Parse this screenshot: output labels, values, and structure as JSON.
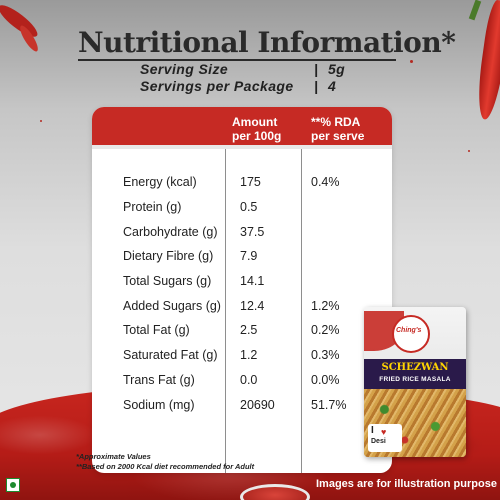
{
  "title": "Nutritional Information*",
  "serving": {
    "size_label": "Serving Size",
    "size_value": "5g",
    "per_package_label": "Servings per Package",
    "per_package_value": "4",
    "separator": "|"
  },
  "table": {
    "headers": {
      "amount_line1": "Amount",
      "amount_line2": "per 100g",
      "rda_line1": "**% RDA",
      "rda_line2": "per serve"
    },
    "rows": [
      {
        "name": "Energy (kcal)",
        "amount": "175",
        "rda": "0.4%"
      },
      {
        "name": "Protein (g)",
        "amount": "0.5",
        "rda": ""
      },
      {
        "name": "Carbohydrate (g)",
        "amount": "37.5",
        "rda": ""
      },
      {
        "name": "Dietary Fibre (g)",
        "amount": "7.9",
        "rda": ""
      },
      {
        "name": "Total Sugars (g)",
        "amount": "14.1",
        "rda": ""
      },
      {
        "name": "Added Sugars (g)",
        "amount": "12.4",
        "rda": "1.2%"
      },
      {
        "name": "Total Fat (g)",
        "amount": "2.5",
        "rda": "0.2%"
      },
      {
        "name": "Saturated Fat (g)",
        "amount": "1.2",
        "rda": "0.3%"
      },
      {
        "name": "Trans Fat (g)",
        "amount": "0.0",
        "rda": "0.0%"
      },
      {
        "name": "Sodium (mg)",
        "amount": "20690",
        "rda": "51.7%"
      }
    ]
  },
  "product": {
    "brand": "Ching's",
    "name": "SCHEZWAN",
    "subtitle": "FRIED RICE MASALA",
    "badge_i": "I",
    "badge_text": "Desi"
  },
  "footnotes": {
    "approx": "*Approximate Values",
    "rda_basis": "**Based on 2000 Kcal diet recommended for Adult",
    "illustration": "Images are for illustration purpose"
  },
  "colors": {
    "accent_red": "#c62a24",
    "veg_green": "#1e8a2e"
  },
  "icons": {
    "veg_mark": "veg-mark-icon",
    "heart": "heart-icon"
  }
}
